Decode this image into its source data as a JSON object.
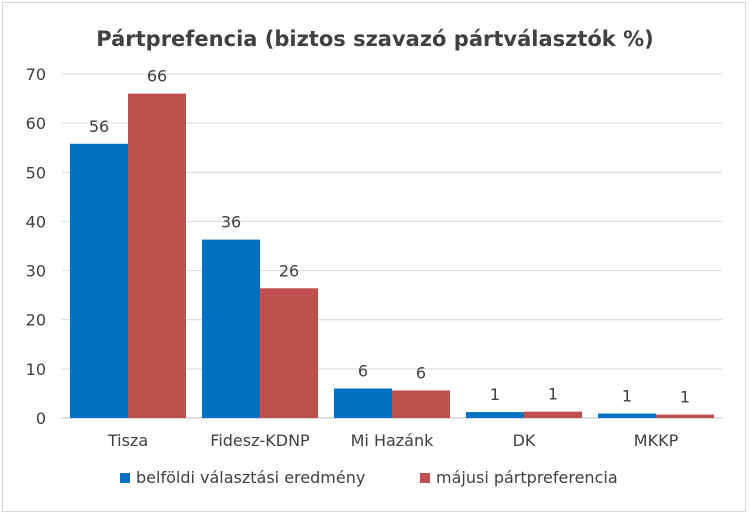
{
  "chart_data": {
    "type": "bar",
    "title": "Pártprefencia (biztos szavazó pártválasztók %)",
    "categories": [
      "Tisza",
      "Fidesz-KDNP",
      "Mi Hazánk",
      "DK",
      "MKKP"
    ],
    "series": [
      {
        "name": "belföldi választási eredmény",
        "values": [
          56,
          36,
          6,
          1,
          1
        ],
        "color": "#0070c0"
      },
      {
        "name": "májusi pártpreferencia",
        "values": [
          66,
          26,
          6,
          1,
          1
        ],
        "color": "#c0504d"
      }
    ],
    "display_values": [
      [
        56,
        36,
        6,
        1,
        1
      ],
      [
        66,
        26,
        6,
        1,
        1
      ]
    ],
    "bar_values": [
      [
        55.8,
        36.3,
        6.0,
        1.2,
        0.9
      ],
      [
        66.0,
        26.4,
        5.6,
        1.3,
        0.7
      ]
    ],
    "ylim": [
      0,
      70
    ],
    "yticks": [
      0,
      10,
      20,
      30,
      40,
      50,
      60,
      70
    ],
    "grid": true,
    "legend_position": "bottom"
  }
}
